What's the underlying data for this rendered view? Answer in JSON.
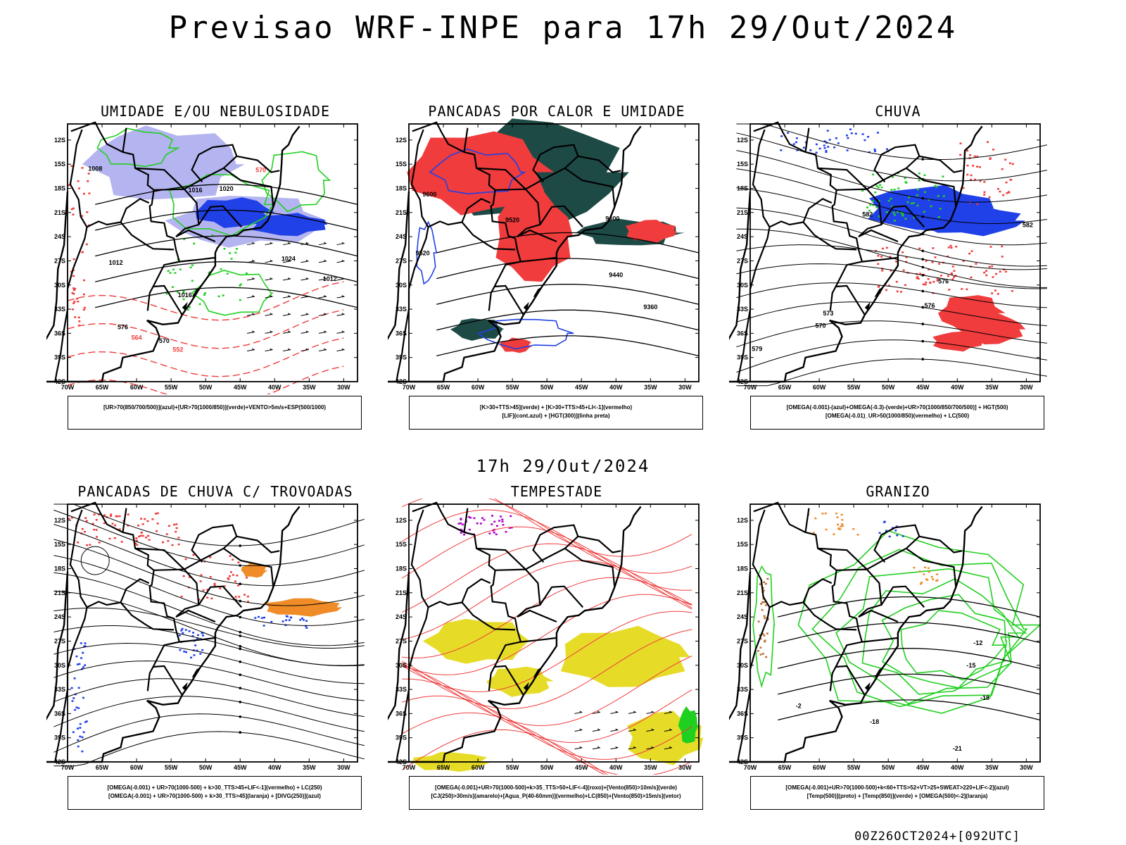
{
  "header": {
    "title": "Previsao WRF-INPE  para 17h 29/Out/2024"
  },
  "mid_title": "17h 29/Out/2024",
  "footer": "00Z26OCT2024+[092UTC]",
  "axes": {
    "lat_labels": [
      "12S",
      "15S",
      "18S",
      "21S",
      "24S",
      "27S",
      "30S",
      "33S",
      "36S",
      "39S",
      "42S"
    ],
    "lon_labels": [
      "70W",
      "65W",
      "60W",
      "55W",
      "50W",
      "45W",
      "40W",
      "35W",
      "30W"
    ]
  },
  "colors": {
    "light_purple": "#b4b4f0",
    "blue": "#2040e8",
    "green": "#20d020",
    "red": "#f03c3c",
    "dark_teal": "#1e4a46",
    "orange": "#f08c28",
    "yellow": "#e6dc28",
    "purple": "#b000d0",
    "black": "#000000"
  },
  "panels": [
    {
      "id": "umidade",
      "title": "UMIDADE E/OU NEBULOSIDADE",
      "legend": [
        "[UR>70(850/700/500)](azul)+[UR>70(1000/850)](verde)+VENTO>5m/s+ESP(500/1000)"
      ],
      "contour_labels": [
        "1008",
        "1012",
        "1016",
        "1020",
        "1024",
        "1012",
        "1016",
        "576",
        "570",
        "564",
        "552"
      ]
    },
    {
      "id": "pancadas-calor",
      "title": "PANCADAS POR CALOR E UMIDADE",
      "legend": [
        "[K>30+TTS>45](verde) + [K>30+TTS>45+LI<-1](vermelho)",
        "[LIF](cont.azul) + [HGT(300)](linha preta)"
      ],
      "contour_labels": [
        "9600",
        "9520",
        "9440",
        "9360",
        "9600",
        "9520"
      ]
    },
    {
      "id": "chuva",
      "title": "CHUVA",
      "legend": [
        "[OMEGA(-0.001)-(azul)+OMEGA(-0.3)-(verde)+UR>70(1000/850/700/500)] + HGT(500)",
        "[OMEGA(-0.01)_UR>50(1000/850)(vermelho) + LC(500)"
      ],
      "contour_labels": [
        "582",
        "576",
        "576",
        "573",
        "570",
        "579",
        "582"
      ]
    },
    {
      "id": "pancadas-trovoadas",
      "title": "PANCADAS DE CHUVA C/ TROVOADAS",
      "legend": [
        "[OMEGA(-0.001) + UR>70(1000-500) + k>30_TTS>45+LIF<-1](vermelho) + LC(250)",
        "[OMEGA(-0.001) + UR>70(1000-500) + k>30_TTS>45](laranja) + [DIVG(250)](azul)"
      ],
      "contour_labels": []
    },
    {
      "id": "tempestade",
      "title": "TEMPESTADE",
      "legend": [
        "[OMEGA(-0.001)+UR>70(1000-500)+k>35_TTS>50+LIF<-4](roxo)+[Vento(850)>10m/s](verde)",
        "[CJ(250)>30m/s](amarelo)+[Agua_P(40-60mm)](vermelho)+LC(850)+[Vento(850)>15m/s](vetor)"
      ],
      "contour_labels": []
    },
    {
      "id": "granizo",
      "title": "GRANIZO",
      "legend": [
        "[OMEGA(-0.001)+UR>70(1000-500)+k<60+TTS>52+VT>25+SWEAT>220+LIF<-2](azul)",
        "[Temp(500)](preto) + [Temp(850)](verde) + [OMEGA(500)<-2](laranja)"
      ],
      "contour_labels": [
        "-12",
        "-15",
        "-18",
        "-18",
        "-21",
        "-2"
      ]
    }
  ]
}
